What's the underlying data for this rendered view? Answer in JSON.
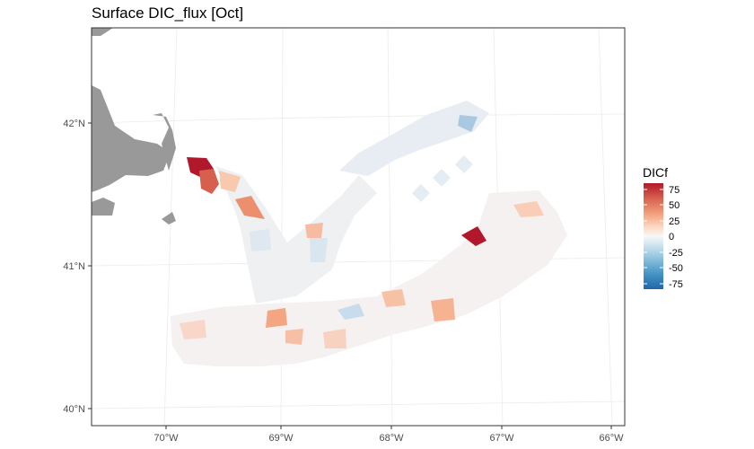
{
  "plot": {
    "title": "Surface DIC_flux [Oct]"
  },
  "axes": {
    "x_ticks": [
      "70°W",
      "69°W",
      "68°W",
      "67°W",
      "66°W"
    ],
    "y_ticks": [
      "42°N",
      "41°N",
      "40°N"
    ]
  },
  "legend": {
    "title": "DICf",
    "placement": "right",
    "labels": [
      "75",
      "50",
      "25",
      "0",
      "-25",
      "-50",
      "-75"
    ],
    "values": [
      75,
      50,
      25,
      0,
      -25,
      -50,
      -75
    ],
    "range": [
      -80,
      80
    ],
    "palette": [
      "#053061",
      "#2166ac",
      "#4393c3",
      "#92c5de",
      "#d1e5f0",
      "#f7f7f7",
      "#fddbc7",
      "#f4a582",
      "#d6604d",
      "#b2182b",
      "#67001f"
    ]
  },
  "map_features": {
    "land_color": "#999999",
    "grid_color": "#ebebeb",
    "panel_border_color": "#333333",
    "data_extent_lon": [
      -70.4,
      -66.4
    ],
    "data_extent_lat": [
      40.3,
      42.1
    ]
  },
  "chart_data": {
    "type": "heatmap",
    "title": "Surface DIC_flux [Oct]",
    "variable": "DICf",
    "colorbar_range": [
      -80,
      80
    ],
    "highlights": [
      {
        "lon": -69.85,
        "lat": 41.7,
        "value": 80
      },
      {
        "lon": -69.7,
        "lat": 41.6,
        "value": 60
      },
      {
        "lon": -69.35,
        "lat": 41.35,
        "value": 40
      },
      {
        "lon": -67.2,
        "lat": 41.2,
        "value": 80
      },
      {
        "lon": -67.3,
        "lat": 42.0,
        "value": -35
      },
      {
        "lon": -69.1,
        "lat": 40.6,
        "value": 30
      },
      {
        "lon": -68.4,
        "lat": 40.7,
        "value": -15
      }
    ]
  }
}
